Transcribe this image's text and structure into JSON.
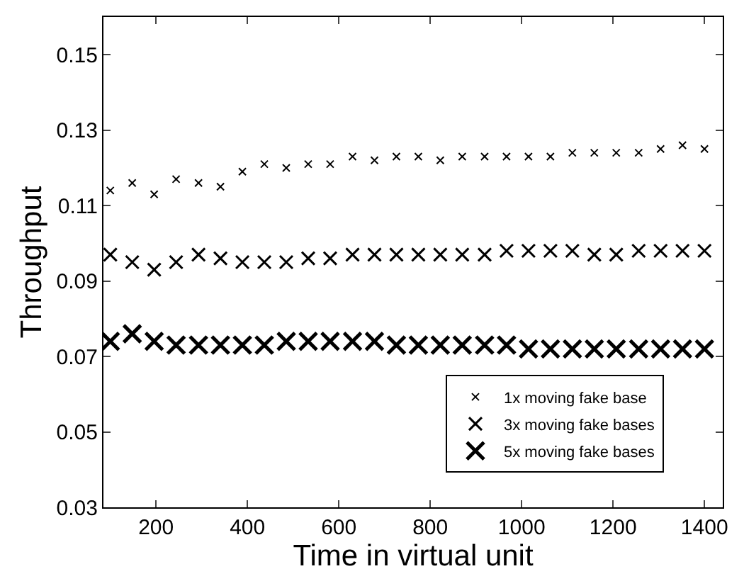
{
  "chart_data": {
    "type": "scatter",
    "xlabel": "Time in virtual unit",
    "ylabel": "Throughput",
    "x": [
      100,
      148,
      196,
      244,
      293,
      341,
      389,
      437,
      485,
      533,
      581,
      630,
      678,
      726,
      774,
      822,
      870,
      919,
      967,
      1015,
      1063,
      1111,
      1159,
      1207,
      1256,
      1304,
      1352,
      1400
    ],
    "series": [
      {
        "name": "1x moving fake base",
        "color": "#000000",
        "values": [
          0.114,
          0.116,
          0.113,
          0.117,
          0.116,
          0.115,
          0.119,
          0.121,
          0.12,
          0.121,
          0.121,
          0.123,
          0.122,
          0.123,
          0.123,
          0.122,
          0.123,
          0.123,
          0.123,
          0.123,
          0.123,
          0.124,
          0.124,
          0.124,
          0.124,
          0.125,
          0.126,
          0.125
        ]
      },
      {
        "name": "3x moving fake bases",
        "color": "#000000",
        "values": [
          0.097,
          0.095,
          0.093,
          0.095,
          0.097,
          0.096,
          0.095,
          0.095,
          0.095,
          0.096,
          0.096,
          0.097,
          0.097,
          0.097,
          0.097,
          0.097,
          0.097,
          0.097,
          0.098,
          0.098,
          0.098,
          0.098,
          0.097,
          0.097,
          0.098,
          0.098,
          0.098,
          0.098
        ]
      },
      {
        "name": "5x moving fake bases",
        "color": "#000000",
        "values": [
          0.074,
          0.076,
          0.074,
          0.073,
          0.073,
          0.073,
          0.073,
          0.073,
          0.074,
          0.074,
          0.074,
          0.074,
          0.074,
          0.073,
          0.073,
          0.073,
          0.073,
          0.073,
          0.073,
          0.072,
          0.072,
          0.072,
          0.072,
          0.072,
          0.072,
          0.072,
          0.072,
          0.072
        ]
      }
    ],
    "xlim": [
      85,
      1440
    ],
    "xticks": [
      200,
      400,
      600,
      800,
      1000,
      1200,
      1400
    ],
    "ylim": [
      0.03,
      0.16
    ],
    "yticks": [
      {
        "value": 0.03,
        "label": "0.03"
      },
      {
        "value": 0.05,
        "label": "0.05"
      },
      {
        "value": 0.07,
        "label": "0.07"
      },
      {
        "value": 0.09,
        "label": "0.09"
      },
      {
        "value": 0.11,
        "label": "0.11"
      },
      {
        "value": 0.13,
        "label": "0.13"
      },
      {
        "value": 0.15,
        "label": "0.15"
      }
    ],
    "marker": "cross",
    "legend": "bottom right"
  }
}
